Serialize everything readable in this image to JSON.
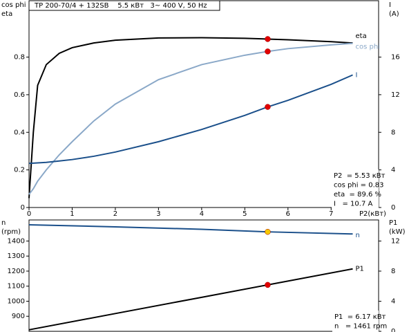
{
  "chart_data": [
    {
      "type": "line",
      "title": "TP 200-70/4 + 132SB    5.5 кВт   3~ 400 V, 50 Hz",
      "ylabel": [
        "cos phi",
        "eta"
      ],
      "y2label": [
        "I",
        "(A)"
      ],
      "xlabel": "P2(кВт)",
      "x": [
        0,
        0.1,
        0.2,
        0.4,
        0.7,
        1,
        1.5,
        2,
        3,
        4,
        5,
        5.53,
        6,
        7,
        7.5
      ],
      "xlim": [
        0,
        8.1
      ],
      "xticks": [
        0,
        1,
        2,
        3,
        4,
        5,
        6,
        7
      ],
      "ylim": [
        0,
        1.1
      ],
      "yticks": [
        0,
        0.2,
        0.4,
        0.6,
        0.8
      ],
      "y2lim": [
        0,
        22
      ],
      "y2ticks": [
        0,
        4,
        8,
        12,
        16
      ],
      "operating_point": 5.53,
      "series": [
        {
          "name": "eta",
          "color": "#000000",
          "marker_color": "#e00000",
          "values": [
            0.05,
            0.4,
            0.65,
            0.76,
            0.82,
            0.85,
            0.875,
            0.89,
            0.902,
            0.903,
            0.9,
            0.896,
            0.892,
            0.882,
            0.875
          ]
        },
        {
          "name": "cos phi",
          "color": "#8aa8c8",
          "marker_color": "#e00000",
          "values": [
            0.07,
            0.1,
            0.14,
            0.2,
            0.28,
            0.35,
            0.46,
            0.55,
            0.68,
            0.76,
            0.81,
            0.83,
            0.845,
            0.865,
            0.873
          ]
        },
        {
          "name": "I",
          "color": "#1a4f8a",
          "marker_color": "#e00000",
          "axis": "y2",
          "values": [
            4.7,
            4.72,
            4.75,
            4.8,
            4.95,
            5.1,
            5.45,
            5.9,
            7.0,
            8.3,
            9.8,
            10.7,
            11.4,
            13.1,
            14.1
          ]
        }
      ],
      "annotations": [
        "P2  = 5.53 кВт",
        "cos phi = 0.83",
        "eta  = 89.6 %",
        "I   = 10.7 A"
      ]
    },
    {
      "type": "line",
      "ylabel": [
        "n",
        "(rpm)"
      ],
      "y2label": [
        "P1",
        "(kW)"
      ],
      "x": [
        0,
        2,
        4,
        5.53,
        7.5
      ],
      "xlim": [
        0,
        8.1
      ],
      "ylim": [
        800,
        1540
      ],
      "yticks": [
        900,
        1000,
        1100,
        1200,
        1300,
        1400
      ],
      "y2lim": [
        0,
        14.8
      ],
      "y2ticks": [
        0,
        4,
        8,
        12
      ],
      "operating_point": 5.53,
      "series": [
        {
          "name": "n",
          "color": "#1a4f8a",
          "marker_color": "#f5c800",
          "values": [
            1508,
            1494,
            1478,
            1461,
            1447
          ]
        },
        {
          "name": "P1",
          "color": "#000000",
          "marker_color": "#e00000",
          "axis": "y2",
          "values": [
            0.2,
            2.36,
            4.52,
            6.17,
            8.3
          ]
        }
      ],
      "annotations": [
        "P1  = 6.17 кВт",
        "n   = 1461 rpm"
      ]
    }
  ]
}
